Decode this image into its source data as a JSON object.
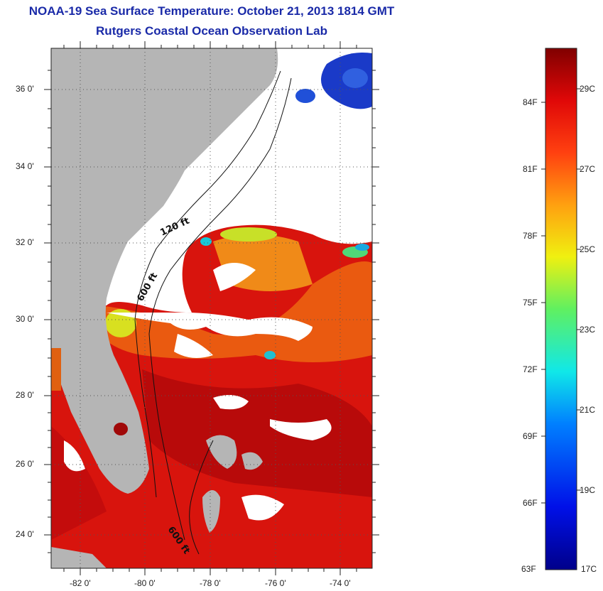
{
  "title": {
    "line1": "NOAA-19 Sea Surface Temperature:  October 21, 2013 1814 GMT",
    "line2": "Rutgers Coastal Ocean Observation Lab"
  },
  "map": {
    "lat_labels": [
      "36 0'",
      "34 0'",
      "32 0'",
      "30 0'",
      "28 0'",
      "26 0'",
      "24 0'"
    ],
    "lon_labels": [
      "-82 0'",
      "-80 0'",
      "-78 0'",
      "-76 0'",
      "-74 0'"
    ],
    "depth_labels": [
      "120 ft",
      "600 ft",
      "600 ft"
    ],
    "colors": {
      "land": "#b5b5b5",
      "cloud": "#ffffff",
      "warm": "#d8140d",
      "warm_dark": "#a80808",
      "orange": "#f06a10",
      "yellow": "#e8e81a",
      "cyan": "#18c8d8",
      "blue": "#1020c8"
    }
  },
  "colorbar": {
    "fahrenheit": [
      "84F",
      "81F",
      "78F",
      "75F",
      "72F",
      "69F",
      "66F",
      "63F"
    ],
    "celsius": [
      "29C",
      "27C",
      "25C",
      "23C",
      "21C",
      "19C",
      "17C"
    ],
    "min_c": 17,
    "max_c": 30
  }
}
